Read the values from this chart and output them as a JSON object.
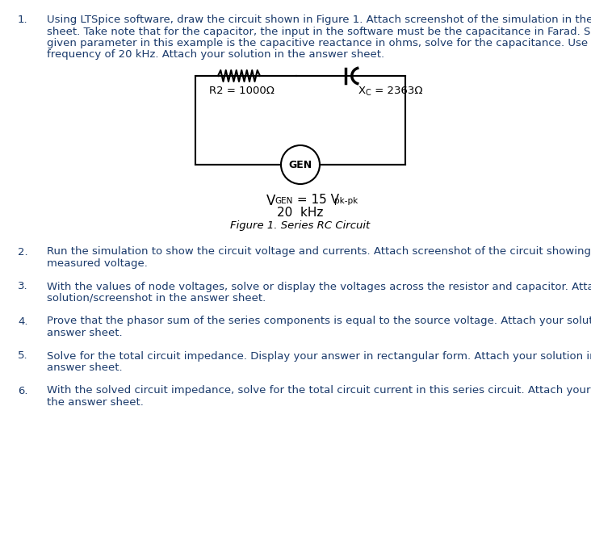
{
  "background_color": "#ffffff",
  "text_color": "#1a3a6b",
  "body_fontsize": 9.5,
  "num_fontsize": 9.5,
  "items": [
    {
      "num": "1.",
      "lines": [
        "Using LTSpice software, draw the circuit shown in Figure 1. Attach screenshot of the simulation in the answer",
        "sheet. Take note that for the capacitor, the input in the software must be the capacitance in Farad. Since the",
        "given parameter in this example is the capacitive reactance in ohms, solve for the capacitance. Use the system",
        "frequency of 20 kHz. Attach your solution in the answer sheet."
      ]
    },
    {
      "num": "2.",
      "lines": [
        "Run the simulation to show the circuit voltage and currents. Attach screenshot of the circuit showing the",
        "measured voltage."
      ]
    },
    {
      "num": "3.",
      "lines": [
        "With the values of node voltages, solve or display the voltages across the resistor and capacitor. Attach your",
        "solution/screenshot in the answer sheet."
      ]
    },
    {
      "num": "4.",
      "lines": [
        "Prove that the phasor sum of the series components is equal to the source voltage. Attach your solution in the",
        "answer sheet."
      ]
    },
    {
      "num": "5.",
      "lines": [
        "Solve for the total circuit impedance. Display your answer in rectangular form. Attach your solution in the",
        "answer sheet."
      ]
    },
    {
      "num": "6.",
      "lines": [
        "With the solved circuit impedance, solve for the total circuit current in this series circuit. Attach your solution in",
        "the answer sheet."
      ]
    }
  ],
  "circuit_label_r": "R2 = 1000Ω",
  "circuit_label_xc_main": "X",
  "circuit_label_xc_sub": "C",
  "circuit_label_xc_val": " = 2363Ω",
  "gen_label": "GEN",
  "vgen_V": "V",
  "vgen_GEN": "GEN",
  "vgen_eq": " = 15 V",
  "vgen_sub": "pk-pk",
  "freq": "20  kHz",
  "caption": "Figure 1. Series RC Circuit"
}
